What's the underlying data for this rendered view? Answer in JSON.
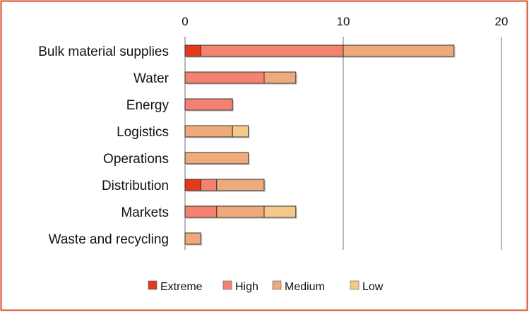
{
  "chart_data": {
    "type": "bar",
    "orientation": "horizontal",
    "stacked": true,
    "title": "",
    "xlabel": "",
    "ylabel": "",
    "xlim": [
      0,
      20
    ],
    "xticks": [
      "0",
      "10",
      "20"
    ],
    "xtick_values": [
      0,
      10,
      20
    ],
    "grid": true,
    "legend_position": "bottom",
    "categories": [
      "Bulk material supplies",
      "Water",
      "Energy",
      "Logistics",
      "Operations",
      "Distribution",
      "Markets",
      "Waste and recycling"
    ],
    "series": [
      {
        "name": "Extreme",
        "color": "#e43a1a",
        "values": [
          1,
          0,
          0,
          0,
          0,
          1,
          0,
          0
        ]
      },
      {
        "name": "High",
        "color": "#f4826e",
        "values": [
          9,
          5,
          3,
          0,
          0,
          1,
          2,
          0
        ]
      },
      {
        "name": "Medium",
        "color": "#eeaa7a",
        "values": [
          7,
          2,
          0,
          3,
          4,
          3,
          3,
          1
        ]
      },
      {
        "name": "Low",
        "color": "#f4ca8a",
        "values": [
          0,
          0,
          0,
          1,
          0,
          0,
          2,
          0
        ]
      }
    ],
    "frame_color": "#e0442a"
  }
}
